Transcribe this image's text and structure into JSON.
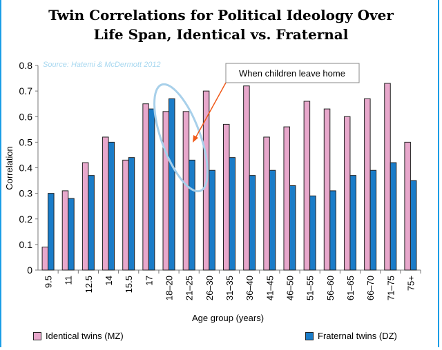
{
  "chart_data": {
    "type": "bar",
    "title_line1": "Twin Correlations for Political Ideology Over",
    "title_line2": "Life Span, Identical vs. Fraternal",
    "source": "Source: Hatemi & McDermott 2012",
    "annotation": "When children leave home",
    "xlabel": "Age group (years)",
    "ylabel": "Correlation",
    "ylim": [
      0,
      0.8
    ],
    "yticks": [
      "0",
      "0.1",
      "0.2",
      "0.3",
      "0.4",
      "0.5",
      "0.6",
      "0.7",
      "0.8"
    ],
    "categories": [
      "9.5",
      "11",
      "12.5",
      "14",
      "15.5",
      "17",
      "18–20",
      "21–25",
      "26–30",
      "31–35",
      "36–40",
      "41–45",
      "46–50",
      "51–55",
      "56–60",
      "61–65",
      "66–70",
      "71–75",
      "75+"
    ],
    "series": [
      {
        "name": "Identical twins (MZ)",
        "color": "#e8a8cc",
        "values": [
          0.09,
          0.31,
          0.42,
          0.52,
          0.43,
          0.65,
          0.62,
          0.62,
          0.7,
          0.57,
          0.72,
          0.52,
          0.56,
          0.66,
          0.63,
          0.6,
          0.67,
          0.73,
          0.5
        ]
      },
      {
        "name": "Fraternal twins (DZ)",
        "color": "#1a7cc8",
        "values": [
          0.3,
          0.28,
          0.37,
          0.5,
          0.44,
          0.63,
          0.67,
          0.43,
          0.39,
          0.44,
          0.37,
          0.39,
          0.33,
          0.29,
          0.31,
          0.37,
          0.39,
          0.42,
          0.35
        ]
      }
    ],
    "grid": false,
    "legend": "bottom",
    "frame_color": "#1a9ee6"
  }
}
